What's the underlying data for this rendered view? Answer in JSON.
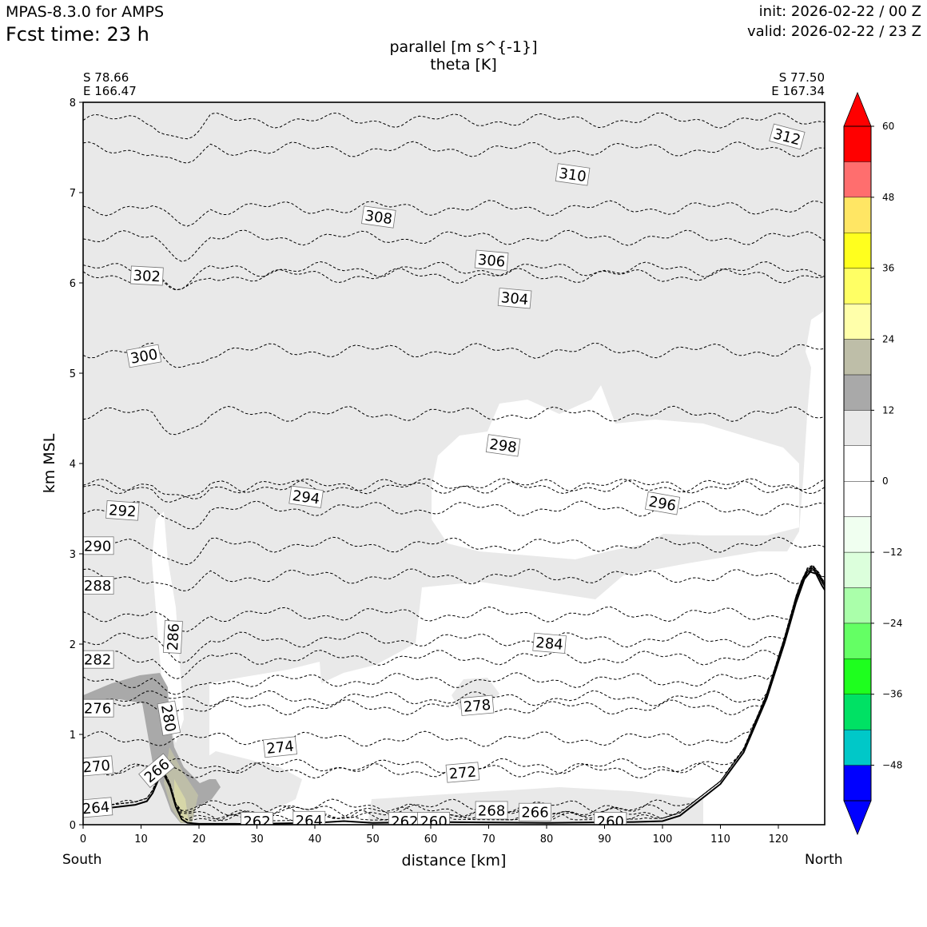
{
  "header": {
    "model": "MPAS-8.3.0 for AMPS",
    "fcst": "Fcst time:   23 h",
    "init": "init: 2026-02-22 / 00 Z",
    "valid": "valid: 2026-02-22 / 23 Z"
  },
  "endpoints": {
    "start_lat": "S 78.66",
    "start_lon": "E 166.47",
    "end_lat": "S 77.50",
    "end_lon": "E 167.34",
    "start_label": "South",
    "end_label": "North"
  },
  "chart_data": {
    "type": "cross-section",
    "title": "parallel [m s^{-1}]",
    "subtitle": "theta [K]",
    "xlabel": "distance [km]",
    "ylabel": "km MSL",
    "xlim": [
      0,
      128
    ],
    "ylim": [
      0,
      8
    ],
    "xticks": [
      0,
      10,
      20,
      30,
      40,
      50,
      60,
      70,
      80,
      90,
      100,
      110,
      120
    ],
    "yticks": [
      0,
      1,
      2,
      3,
      4,
      5,
      6,
      7,
      8
    ],
    "colorbar": {
      "levels": [
        -54,
        -48,
        -42,
        -36,
        -30,
        -24,
        -18,
        -12,
        -6,
        0,
        6,
        12,
        18,
        24,
        30,
        36,
        42,
        48,
        54,
        60
      ],
      "tick_labels": [
        "60",
        "48",
        "36",
        "24",
        "12",
        "0",
        "−12",
        "−24",
        "−36",
        "−48"
      ],
      "tick_values": [
        60,
        48,
        36,
        24,
        12,
        0,
        -12,
        -24,
        -36,
        -48
      ],
      "colors": [
        "#0000ff",
        "#00c8c8",
        "#00e164",
        "#1eff1e",
        "#64ff64",
        "#aaffaa",
        "#dcffdc",
        "#f0fff0",
        "#ffffff",
        "#ffffff",
        "#e9e9e9",
        "#a9a9a9",
        "#bebea8",
        "#ffffaa",
        "#ffff64",
        "#ffff1e",
        "#ffe664",
        "#ff6e6e",
        "#ff0000"
      ],
      "extend_low_color": "#0000ff",
      "extend_high_color": "#ff0000"
    },
    "terrain": [
      [
        0,
        0.15
      ],
      [
        5,
        0.19
      ],
      [
        9,
        0.22
      ],
      [
        11,
        0.26
      ],
      [
        12,
        0.35
      ],
      [
        13,
        0.5
      ],
      [
        14,
        0.55
      ],
      [
        15,
        0.42
      ],
      [
        16,
        0.2
      ],
      [
        17,
        0.06
      ],
      [
        18,
        0.02
      ],
      [
        20,
        0.01
      ],
      [
        30,
        0.01
      ],
      [
        40,
        0.02
      ],
      [
        45,
        0.04
      ],
      [
        50,
        0.02
      ],
      [
        60,
        0.03
      ],
      [
        80,
        0.02
      ],
      [
        95,
        0.03
      ],
      [
        100,
        0.04
      ],
      [
        103,
        0.1
      ],
      [
        106,
        0.25
      ],
      [
        110,
        0.45
      ],
      [
        114,
        0.8
      ],
      [
        118,
        1.4
      ],
      [
        121,
        2.0
      ],
      [
        123,
        2.45
      ],
      [
        124.5,
        2.72
      ],
      [
        125.5,
        2.8
      ],
      [
        126.5,
        2.78
      ],
      [
        127.5,
        2.65
      ],
      [
        128,
        2.6
      ]
    ],
    "theta_contours": [
      {
        "label": "312",
        "base": 7.8
      },
      {
        "label": "310",
        "base": 7.48
      },
      {
        "label": "308",
        "base": 6.83
      },
      {
        "label": "306",
        "base": 6.5
      },
      {
        "label": "304",
        "base": 6.15
      },
      {
        "label": "302",
        "base": 6.08
      },
      {
        "label": "300",
        "base": 5.25
      },
      {
        "label": "298",
        "base": 4.55
      },
      {
        "label": "296",
        "base": 3.75
      },
      {
        "label": "294",
        "base": 3.75
      },
      {
        "label": "292",
        "base": 3.5
      },
      {
        "label": "290",
        "base": 3.1
      },
      {
        "label": "288",
        "base": 2.75
      },
      {
        "label": "286",
        "base": 2.33
      },
      {
        "label": "284",
        "base": 2.05
      },
      {
        "label": "282",
        "base": 1.85
      },
      {
        "label": "280",
        "base": 1.6
      },
      {
        "label": "278",
        "base": 1.4
      },
      {
        "label": "276",
        "base": 1.3
      },
      {
        "label": "274",
        "base": 0.95
      },
      {
        "label": "272",
        "base": 0.65
      },
      {
        "label": "270",
        "base": 0.6
      },
      {
        "label": "268",
        "base": 0.2
      },
      {
        "label": "266",
        "base": 0.15
      },
      {
        "label": "264",
        "base": 0.13
      },
      {
        "label": "262",
        "base": 0.08
      },
      {
        "label": "260",
        "base": 0.05
      }
    ],
    "contour_labels": [
      {
        "text": "312",
        "x": 121.5,
        "y": 7.62,
        "rot": 15
      },
      {
        "text": "310",
        "x": 84.5,
        "y": 7.2,
        "rot": 8
      },
      {
        "text": "308",
        "x": 51,
        "y": 6.73,
        "rot": 8
      },
      {
        "text": "306",
        "x": 70.5,
        "y": 6.25,
        "rot": 5
      },
      {
        "text": "304",
        "x": 74.5,
        "y": 5.83,
        "rot": 5
      },
      {
        "text": "302",
        "x": 11,
        "y": 6.08,
        "rot": 3
      },
      {
        "text": "300",
        "x": 10.5,
        "y": 5.19,
        "rot": -10
      },
      {
        "text": "298",
        "x": 72.5,
        "y": 4.2,
        "rot": 8
      },
      {
        "text": "296",
        "x": 100,
        "y": 3.56,
        "rot": 10
      },
      {
        "text": "294",
        "x": 38.5,
        "y": 3.63,
        "rot": 8
      },
      {
        "text": "292",
        "x": 6.8,
        "y": 3.48,
        "rot": 4
      },
      {
        "text": "290",
        "x": 2.5,
        "y": 3.09,
        "rot": 0
      },
      {
        "text": "288",
        "x": 2.5,
        "y": 2.65,
        "rot": 0
      },
      {
        "text": "286",
        "x": 15.5,
        "y": 2.08,
        "rot": -87
      },
      {
        "text": "284",
        "x": 80.5,
        "y": 2.01,
        "rot": 5
      },
      {
        "text": "282",
        "x": 2.5,
        "y": 1.83,
        "rot": 0
      },
      {
        "text": "280",
        "x": 14.8,
        "y": 1.18,
        "rot": 80
      },
      {
        "text": "278",
        "x": 68,
        "y": 1.32,
        "rot": -5
      },
      {
        "text": "276",
        "x": 2.5,
        "y": 1.29,
        "rot": 0
      },
      {
        "text": "274",
        "x": 34,
        "y": 0.86,
        "rot": -6
      },
      {
        "text": "272",
        "x": 65.5,
        "y": 0.58,
        "rot": -5
      },
      {
        "text": "270",
        "x": 2.3,
        "y": 0.65,
        "rot": -5
      },
      {
        "text": "268",
        "x": 70.5,
        "y": 0.16,
        "rot": 0
      },
      {
        "text": "266",
        "x": 12.7,
        "y": 0.6,
        "rot": -40
      },
      {
        "text": "266",
        "x": 78,
        "y": 0.14,
        "rot": 0
      },
      {
        "text": "264",
        "x": 2.2,
        "y": 0.19,
        "rot": -5
      },
      {
        "text": "264",
        "x": 39,
        "y": 0.05,
        "rot": 0
      },
      {
        "text": "262",
        "x": 30,
        "y": 0.04,
        "rot": 0
      },
      {
        "text": "262",
        "x": 55.5,
        "y": 0.04,
        "rot": 0
      },
      {
        "text": "260",
        "x": 60.5,
        "y": 0.04,
        "rot": 0
      },
      {
        "text": "260",
        "x": 91,
        "y": 0.04,
        "rot": 0
      }
    ]
  }
}
